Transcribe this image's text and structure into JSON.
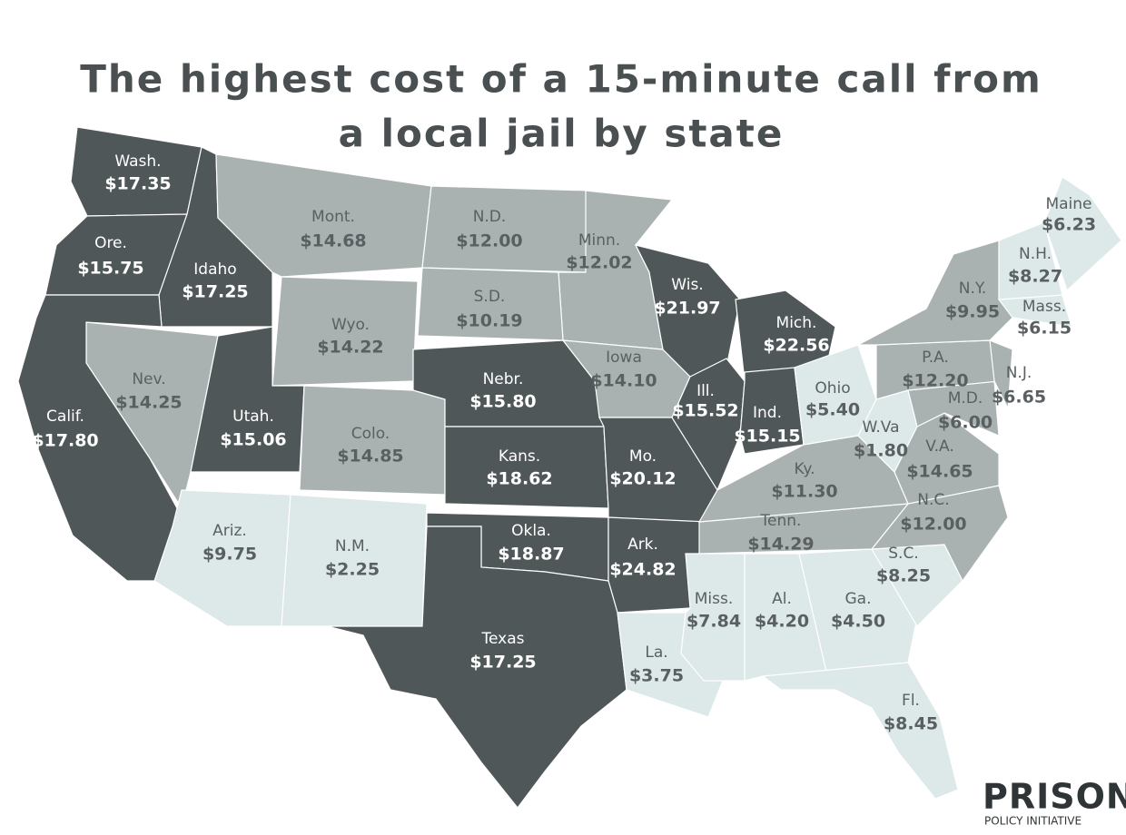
{
  "header": {
    "title": [
      "The highest cost of a 15-minute call from",
      "a local jail by state"
    ]
  },
  "states": [
    {
      "name": "Wash.",
      "cost": "$17.35",
      "color": "#505759"
    },
    {
      "name": "Ore.",
      "cost": "$15.75",
      "color": "#505759"
    },
    {
      "name": "Idaho",
      "cost": "$17.25",
      "color": "#505759"
    },
    {
      "name": "Mont.",
      "cost": "$14.68",
      "color": "#a9b2b1"
    },
    {
      "name": "N.D.",
      "cost": "$12.00",
      "color": "#a9b2b1"
    },
    {
      "name": "Minn.",
      "cost": "$12.02",
      "color": "#a9b2b1"
    },
    {
      "name": "S.D.",
      "cost": "$10.19",
      "color": "#a9b2b1"
    },
    {
      "name": "Wyo.",
      "cost": "$14.22",
      "color": "#a9b2b1"
    },
    {
      "name": "Nev.",
      "cost": "$14.25",
      "color": "#a9b2b1"
    },
    {
      "name": "Calif.",
      "cost": "$17.80",
      "color": "#505759"
    },
    {
      "name": "Utah.",
      "cost": "$15.06",
      "color": "#505759"
    },
    {
      "name": "Colo.",
      "cost": "$14.85",
      "color": "#a9b2b1"
    },
    {
      "name": "Nebr.",
      "cost": "$15.80",
      "color": "#505759"
    },
    {
      "name": "Iowa",
      "cost": "$14.10",
      "color": "#a9b2b1"
    },
    {
      "name": "Wis.",
      "cost": "$21.97",
      "color": "#505759"
    },
    {
      "name": "Mich.",
      "cost": "$22.56",
      "color": "#505759"
    },
    {
      "name": "Ill.",
      "cost": "$15.52",
      "color": "#505759"
    },
    {
      "name": "Ind.",
      "cost": "$15.15",
      "color": "#505759"
    },
    {
      "name": "Ohio",
      "cost": "$5.40",
      "color": "#dde8e8"
    },
    {
      "name": "Kans.",
      "cost": "$18.62",
      "color": "#505759"
    },
    {
      "name": "Mo.",
      "cost": "$20.12",
      "color": "#505759"
    },
    {
      "name": "Ariz.",
      "cost": "$9.75",
      "color": "#dde8e8"
    },
    {
      "name": "N.M.",
      "cost": "$2.25",
      "color": "#dde8e8"
    },
    {
      "name": "Okla.",
      "cost": "$18.87",
      "color": "#505759"
    },
    {
      "name": "Ark.",
      "cost": "$24.82",
      "color": "#505759"
    },
    {
      "name": "Texas",
      "cost": "$17.25",
      "color": "#505759"
    },
    {
      "name": "La.",
      "cost": "$3.75",
      "color": "#dde8e8"
    },
    {
      "name": "Miss.",
      "cost": "$7.84",
      "color": "#dde8e8"
    },
    {
      "name": "Al.",
      "cost": "$4.20",
      "color": "#dde8e8"
    },
    {
      "name": "Ga.",
      "cost": "$4.50",
      "color": "#dde8e8"
    },
    {
      "name": "Fl.",
      "cost": "$8.45",
      "color": "#dde8e8"
    },
    {
      "name": "S.C.",
      "cost": "$8.25",
      "color": "#dde8e8"
    },
    {
      "name": "N.C.",
      "cost": "$12.00",
      "color": "#a9b2b1"
    },
    {
      "name": "Tenn.",
      "cost": "$14.29",
      "color": "#a9b2b1"
    },
    {
      "name": "Ky.",
      "cost": "$11.30",
      "color": "#a9b2b1"
    },
    {
      "name": "W.Va",
      "cost": "$1.80",
      "color": "#dde8e8"
    },
    {
      "name": "V.A.",
      "cost": "$14.65",
      "color": "#a9b2b1"
    },
    {
      "name": "M.D.",
      "cost": "$6.00",
      "color": "#a9b2b1"
    },
    {
      "name": "P.A.",
      "cost": "$12.20",
      "color": "#a9b2b1"
    },
    {
      "name": "N.J.",
      "cost": "$6.65",
      "color": "#a9b2b1"
    },
    {
      "name": "N.Y.",
      "cost": "$9.95",
      "color": "#a9b2b1"
    },
    {
      "name": "Mass.",
      "cost": "$6.15",
      "color": "#dde8e8"
    },
    {
      "name": "N.H.",
      "cost": "$8.27",
      "color": "#dde8e8"
    },
    {
      "name": "Maine",
      "cost": "$6.23",
      "color": "#dde8e8"
    }
  ],
  "logo": {
    "main": "PRISON",
    "sub": "POLICY INITIATIVE"
  }
}
